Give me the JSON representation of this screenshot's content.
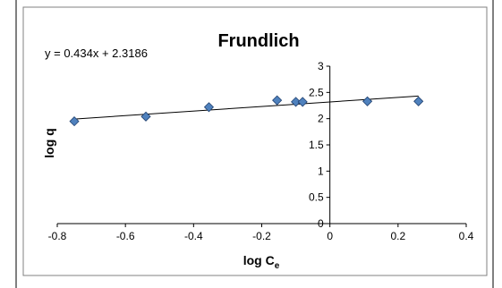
{
  "chart_data": {
    "type": "scatter",
    "title": "Frundlich",
    "xlabel": "log C",
    "xlabel_sub": "e",
    "ylabel": "log q",
    "equation": "y = 0.434x + 2.3186",
    "trendline": {
      "slope": 0.434,
      "intercept": 2.3186,
      "x_range": [
        -0.75,
        0.26
      ]
    },
    "xlim": [
      -0.8,
      0.4
    ],
    "ylim": [
      0,
      3
    ],
    "xticks": [
      -0.8,
      -0.6,
      -0.4,
      -0.2,
      0,
      0.2,
      0.4
    ],
    "xtick_labels": [
      "-0.8",
      "-0.6",
      "-0.4",
      "-0.2",
      "0",
      "0.2",
      "0.4"
    ],
    "yticks": [
      0,
      0.5,
      1,
      1.5,
      2,
      2.5,
      3
    ],
    "ytick_labels": [
      "0",
      "0.5",
      "1",
      "1.5",
      "2",
      "2.5",
      "3"
    ],
    "grid": false,
    "legend": "none",
    "marker": "diamond",
    "marker_color": "#4f81bd",
    "marker_edge_color": "#1f3f6e",
    "line_color": "#000000",
    "x": [
      -0.75,
      -0.54,
      -0.355,
      -0.155,
      -0.1,
      -0.08,
      0.11,
      0.26
    ],
    "y": [
      1.95,
      2.04,
      2.22,
      2.35,
      2.32,
      2.32,
      2.33,
      2.33
    ]
  }
}
